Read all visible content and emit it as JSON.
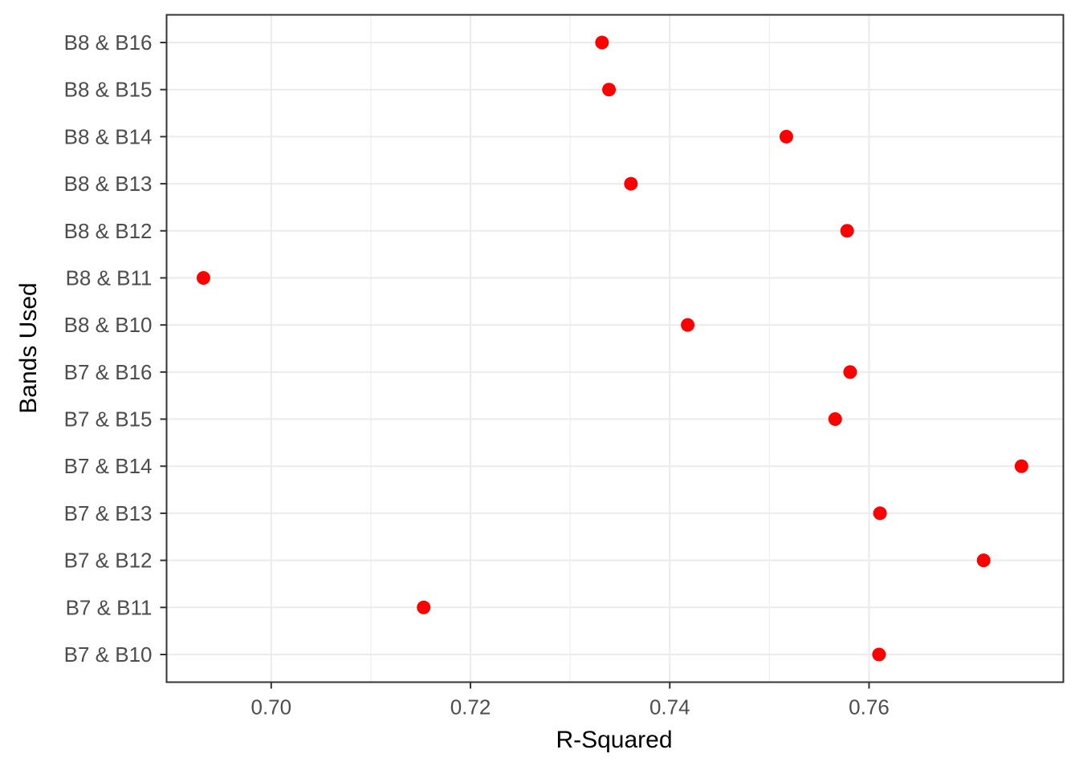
{
  "chart_data": {
    "type": "scatter",
    "title": "",
    "xlabel": "R-Squared",
    "ylabel": "Bands Used",
    "xlim": [
      0.6895,
      0.7795
    ],
    "x_ticks": [
      0.7,
      0.72,
      0.74,
      0.76
    ],
    "x_tick_labels": [
      "0.70",
      "0.72",
      "0.74",
      "0.76"
    ],
    "grid": true,
    "legend": "none",
    "categories": [
      "B7 & B10",
      "B7 & B11",
      "B7 & B12",
      "B7 & B13",
      "B7 & B14",
      "B7 & B15",
      "B7 & B16",
      "B8 & B10",
      "B8 & B11",
      "B8 & B12",
      "B8 & B13",
      "B8 & B14",
      "B8 & B15",
      "B8 & B16"
    ],
    "values": [
      0.761,
      0.7153,
      0.7715,
      0.7611,
      0.7753,
      0.7566,
      0.7581,
      0.7418,
      0.6932,
      0.7578,
      0.7361,
      0.7517,
      0.7339,
      0.7332
    ],
    "point_color": "#ff0000",
    "grid_color": "#ebebeb",
    "panel_border_color": "#333333"
  }
}
